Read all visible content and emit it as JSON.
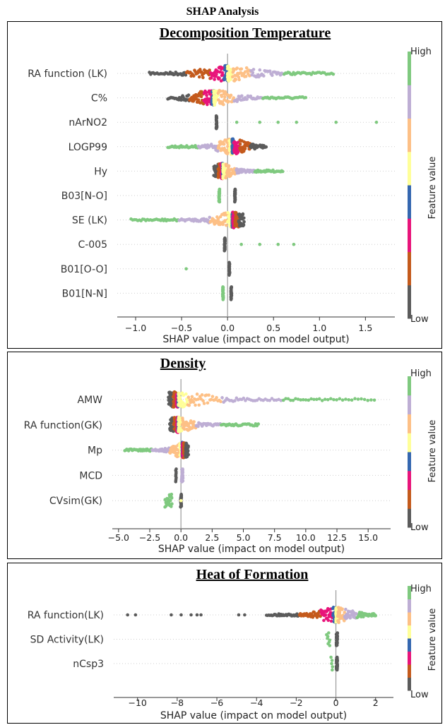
{
  "figure_title": "SHAP Analysis",
  "colormap": [
    "#5b5b5b",
    "#c45a1c",
    "#e8147a",
    "#3567b0",
    "#ffff99",
    "#fdc086",
    "#beaed4",
    "#7fc97f"
  ],
  "chart_data": [
    {
      "type": "scatter",
      "title": "Decomposition Temperature",
      "xlabel": "SHAP value (impact on model output)",
      "xlim": [
        -1.2,
        1.82
      ],
      "xticks": [
        -1.0,
        -0.5,
        0.0,
        0.5,
        1.0,
        1.5
      ],
      "xtick_labels": [
        "−1.0",
        "−0.5",
        "0.0",
        "0.5",
        "1.0",
        "1.5"
      ],
      "colorbar": {
        "label": "Feature value",
        "high": "High",
        "low": "Low"
      },
      "features": [
        {
          "name": "RA function (LK)",
          "dist": {
            "kind": "span",
            "min": -0.85,
            "max": 1.15,
            "center": 0.0,
            "reverse": false
          }
        },
        {
          "name": "C%",
          "dist": {
            "kind": "span",
            "min": -0.65,
            "max": 0.85,
            "center": -0.15,
            "reverse": false
          }
        },
        {
          "name": "nArNO2",
          "dist": {
            "kind": "groups",
            "groups": [
              {
                "x": -0.12,
                "c": 0.0,
                "n": 30,
                "w": 0.004
              }
            ],
            "outliers": [
              [
                0.1,
                0.9
              ],
              [
                0.35,
                0.95
              ],
              [
                0.55,
                0.95
              ],
              [
                0.75,
                0.95
              ],
              [
                1.18,
                0.97
              ],
              [
                1.62,
                0.98
              ]
            ]
          }
        },
        {
          "name": "LOGP99",
          "dist": {
            "kind": "span",
            "min": -0.65,
            "max": 0.42,
            "center": 0.05,
            "reverse": true
          }
        },
        {
          "name": "Hy",
          "dist": {
            "kind": "span",
            "min": -0.15,
            "max": 0.6,
            "center": -0.05,
            "reverse": false
          }
        },
        {
          "name": "B03[N-O]",
          "dist": {
            "kind": "groups",
            "groups": [
              {
                "x": -0.09,
                "c": 0.95,
                "n": 30,
                "w": 0.004
              },
              {
                "x": 0.08,
                "c": 0.0,
                "n": 30,
                "w": 0.004
              }
            ],
            "outliers": []
          }
        },
        {
          "name": "SE (LK)",
          "dist": {
            "kind": "span",
            "min": -1.05,
            "max": 0.18,
            "center": 0.05,
            "reverse": true
          }
        },
        {
          "name": "C-005",
          "dist": {
            "kind": "groups",
            "groups": [
              {
                "x": -0.03,
                "c": 0.0,
                "n": 30,
                "w": 0.004
              }
            ],
            "outliers": [
              [
                0.15,
                0.95
              ],
              [
                0.35,
                0.95
              ],
              [
                0.55,
                0.95
              ],
              [
                0.72,
                0.95
              ]
            ]
          }
        },
        {
          "name": "B01[O-O]",
          "dist": {
            "kind": "groups",
            "groups": [
              {
                "x": 0.02,
                "c": 0.0,
                "n": 30,
                "w": 0.004
              }
            ],
            "outliers": [
              [
                -0.45,
                0.95
              ]
            ]
          }
        },
        {
          "name": "B01[N-N]",
          "dist": {
            "kind": "groups",
            "groups": [
              {
                "x": -0.05,
                "c": 0.95,
                "n": 30,
                "w": 0.004
              },
              {
                "x": 0.04,
                "c": 0.0,
                "n": 30,
                "w": 0.004
              }
            ],
            "outliers": []
          }
        }
      ]
    },
    {
      "type": "scatter",
      "title": "Density",
      "xlabel": "SHAP value (impact on model output)",
      "xlim": [
        -5.5,
        16.8
      ],
      "xticks": [
        -5.0,
        -2.5,
        0.0,
        2.5,
        5.0,
        7.5,
        10.0,
        12.5,
        15.0
      ],
      "xtick_labels": [
        "−5.0",
        "−2.5",
        "0.0",
        "2.5",
        "5.0",
        "7.5",
        "10.0",
        "12.5",
        "15.0"
      ],
      "colorbar": {
        "label": "Feature value",
        "high": "High",
        "low": "Low"
      },
      "features": [
        {
          "name": "AMW",
          "dist": {
            "kind": "span",
            "min": -1.0,
            "max": 15.5,
            "center": -0.2,
            "reverse": false
          }
        },
        {
          "name": "RA function(GK)",
          "dist": {
            "kind": "span",
            "min": -0.9,
            "max": 6.2,
            "center": -0.2,
            "reverse": false
          }
        },
        {
          "name": "Mp",
          "dist": {
            "kind": "span",
            "min": -4.5,
            "max": 0.6,
            "center": 0.1,
            "reverse": true
          }
        },
        {
          "name": "MCD",
          "dist": {
            "kind": "groups",
            "groups": [
              {
                "x": -0.4,
                "c": 0.0,
                "n": 10,
                "w": 0.03
              },
              {
                "x": 0.1,
                "c": 0.8,
                "n": 30,
                "w": 0.06
              }
            ],
            "outliers": []
          }
        },
        {
          "name": "CVsim(GK)",
          "dist": {
            "kind": "groups",
            "groups": [
              {
                "x": -1.0,
                "c": 0.95,
                "n": 25,
                "w": 0.3
              },
              {
                "x": 0.0,
                "c": 0.0,
                "n": 30,
                "w": 0.04
              }
            ],
            "outliers": [
              [
                0.0,
                0.5
              ]
            ]
          }
        }
      ]
    },
    {
      "type": "scatter",
      "title": "Heat of Formation",
      "xlabel": "SHAP value (impact on model output)",
      "xlim": [
        -11.2,
        2.9
      ],
      "xticks": [
        -10,
        -8,
        -6,
        -4,
        -2,
        0,
        2
      ],
      "xtick_labels": [
        "−10",
        "−8",
        "−6",
        "−4",
        "−2",
        "0",
        "2"
      ],
      "colorbar": {
        "label": "Feature value",
        "high": "High",
        "low": "Low"
      },
      "features": [
        {
          "name": "RA function(LK)",
          "dist": {
            "kind": "span",
            "min": -3.5,
            "max": 2.0,
            "center": 0.0,
            "reverse": false,
            "outliers": [
              [
                -10.5,
                0.0
              ],
              [
                -10.1,
                0.0
              ],
              [
                -8.3,
                0.0
              ],
              [
                -7.8,
                0.0
              ],
              [
                -7.3,
                0.0
              ],
              [
                -7.0,
                0.0
              ],
              [
                -6.8,
                0.0
              ],
              [
                -4.9,
                0.0
              ],
              [
                -4.6,
                0.0
              ]
            ]
          }
        },
        {
          "name": "SD Activity(LK)",
          "dist": {
            "kind": "groups",
            "groups": [
              {
                "x": -0.4,
                "c": 0.95,
                "n": 8,
                "w": 0.1
              },
              {
                "x": 0.05,
                "c": 0.0,
                "n": 30,
                "w": 0.03
              }
            ],
            "outliers": []
          }
        },
        {
          "name": "nCsp3",
          "dist": {
            "kind": "groups",
            "groups": [
              {
                "x": -0.2,
                "c": 0.95,
                "n": 5,
                "w": 0.05
              },
              {
                "x": 0.05,
                "c": 0.0,
                "n": 30,
                "w": 0.03
              }
            ],
            "outliers": []
          }
        }
      ]
    }
  ]
}
